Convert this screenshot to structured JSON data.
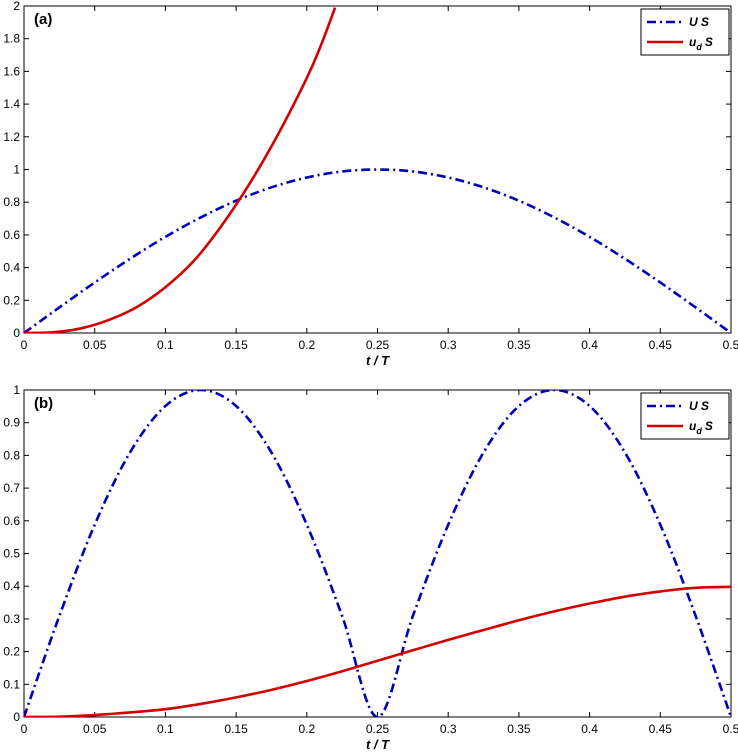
{
  "chart_data": [
    {
      "type": "line",
      "panel_label": "(a)",
      "xlabel": "t / T",
      "ylabel": "",
      "xlim": [
        0,
        0.5
      ],
      "ylim": [
        0,
        2
      ],
      "xticks": [
        "0",
        "0.05",
        "0.1",
        "0.15",
        "0.2",
        "0.25",
        "0.3",
        "0.35",
        "0.4",
        "0.45",
        "0.5"
      ],
      "yticks": [
        "0",
        "0.2",
        "0.4",
        "0.6",
        "0.8",
        "1",
        "1.2",
        "1.4",
        "1.6",
        "1.8",
        "2"
      ],
      "legend_position": "top-right",
      "grid": false,
      "series": [
        {
          "legend_main": "U S",
          "legend_sub": "",
          "legend_after": "",
          "color": "#0000b8",
          "style": "dash-dot",
          "x": [
            0,
            0.025,
            0.05,
            0.075,
            0.1,
            0.125,
            0.15,
            0.175,
            0.2,
            0.225,
            0.25,
            0.275,
            0.3,
            0.325,
            0.35,
            0.375,
            0.4,
            0.425,
            0.45,
            0.475,
            0.5
          ],
          "y": [
            0,
            0.156,
            0.309,
            0.454,
            0.588,
            0.707,
            0.809,
            0.891,
            0.951,
            0.988,
            1.0,
            0.988,
            0.951,
            0.891,
            0.809,
            0.707,
            0.588,
            0.454,
            0.309,
            0.156,
            0
          ]
        },
        {
          "legend_main": "u",
          "legend_sub": "d",
          "legend_after": "S",
          "color": "#d40000",
          "style": "solid",
          "x": [
            0,
            0.02,
            0.04,
            0.06,
            0.08,
            0.1,
            0.12,
            0.14,
            0.16,
            0.18,
            0.2,
            0.21,
            0.22
          ],
          "y": [
            0,
            0.004,
            0.028,
            0.08,
            0.16,
            0.28,
            0.44,
            0.66,
            0.92,
            1.22,
            1.56,
            1.76,
            1.99
          ]
        }
      ]
    },
    {
      "type": "line",
      "panel_label": "(b)",
      "xlabel": "t / T",
      "ylabel": "",
      "xlim": [
        0,
        0.5
      ],
      "ylim": [
        0,
        1
      ],
      "xticks": [
        "0",
        "0.05",
        "0.1",
        "0.15",
        "0.2",
        "0.25",
        "0.3",
        "0.35",
        "0.4",
        "0.45",
        "0.5"
      ],
      "yticks": [
        "0",
        "0.1",
        "0.2",
        "0.3",
        "0.4",
        "0.5",
        "0.6",
        "0.7",
        "0.8",
        "0.9",
        "1"
      ],
      "legend_position": "top-right",
      "grid": false,
      "series": [
        {
          "legend_main": "U S",
          "legend_sub": "",
          "legend_after": "",
          "color": "#0000b8",
          "style": "dash-dot",
          "x": [
            0,
            0.025,
            0.05,
            0.075,
            0.1,
            0.125,
            0.15,
            0.175,
            0.2,
            0.225,
            0.25,
            0.275,
            0.3,
            0.325,
            0.35,
            0.375,
            0.4,
            0.425,
            0.45,
            0.475,
            0.5
          ],
          "y": [
            0,
            0.309,
            0.588,
            0.809,
            0.951,
            1.0,
            0.951,
            0.809,
            0.588,
            0.309,
            0,
            0.309,
            0.588,
            0.809,
            0.951,
            1.0,
            0.951,
            0.809,
            0.588,
            0.309,
            0
          ]
        },
        {
          "legend_main": "u",
          "legend_sub": "d",
          "legend_after": "S",
          "color": "#d40000",
          "style": "solid",
          "x": [
            0,
            0.025,
            0.05,
            0.075,
            0.1,
            0.125,
            0.15,
            0.175,
            0.2,
            0.225,
            0.25,
            0.275,
            0.3,
            0.325,
            0.35,
            0.375,
            0.4,
            0.425,
            0.45,
            0.475,
            0.5
          ],
          "y": [
            0,
            0.001,
            0.006,
            0.014,
            0.024,
            0.04,
            0.06,
            0.083,
            0.11,
            0.14,
            0.172,
            0.204,
            0.236,
            0.266,
            0.296,
            0.323,
            0.347,
            0.368,
            0.384,
            0.395,
            0.398
          ]
        }
      ]
    }
  ]
}
